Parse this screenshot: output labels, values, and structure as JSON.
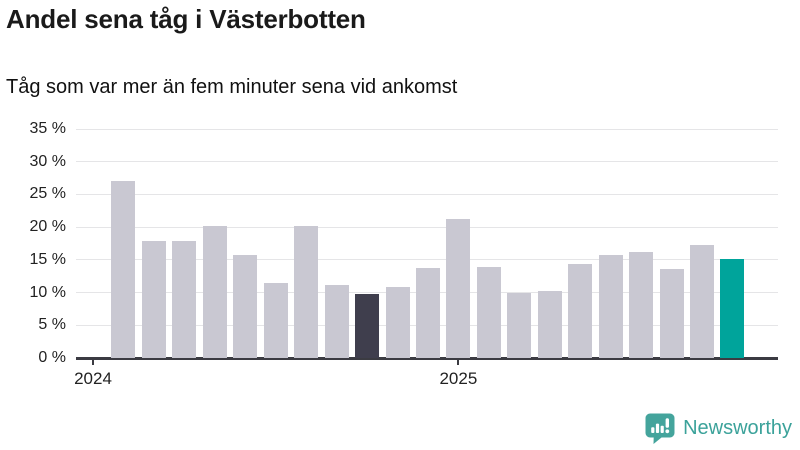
{
  "header": {
    "title": "Andel sena tåg i Västerbotten",
    "subtitle": "Tåg som var mer än fem minuter sena vid ankomst"
  },
  "chart_data": {
    "type": "bar",
    "title": "Andel sena tåg i Västerbotten",
    "subtitle": "Tåg som var mer än fem minuter sena vid ankomst",
    "unit": "%",
    "x": [
      "2024-01",
      "2024-02",
      "2024-03",
      "2024-04",
      "2024-05",
      "2024-06",
      "2024-07",
      "2024-08",
      "2024-09",
      "2024-10",
      "2024-11",
      "2024-12",
      "2025-01",
      "2025-02",
      "2025-03",
      "2025-04",
      "2025-05",
      "2025-06",
      "2025-07",
      "2025-08",
      "2025-09",
      "2025-10"
    ],
    "values": [
      null,
      27,
      17.9,
      17.9,
      20.2,
      15.8,
      11.5,
      20.2,
      11.2,
      9.8,
      10.9,
      13.8,
      21.2,
      13.9,
      10,
      10.2,
      14.3,
      15.7,
      16.2,
      13.6,
      17.2,
      15.2
    ],
    "highlight": {
      "dark_index": 9,
      "teal_index": 21
    },
    "ylim": [
      0,
      35
    ],
    "ytick_step": 5,
    "ytick_labels": [
      "0 %",
      "5 %",
      "10 %",
      "15 %",
      "20 %",
      "25 %",
      "30 %",
      "35 %"
    ],
    "xticks": [
      {
        "label": "2024",
        "slot": 0
      },
      {
        "label": "2025",
        "slot": 12
      }
    ],
    "grid": true,
    "legend": "none",
    "colors": {
      "bar_default": "#c9c8d2",
      "bar_dark": "#3f3e4d",
      "bar_teal": "#00a49b",
      "grid": "#e5e5e7",
      "axis": "#3b3b42"
    }
  },
  "footer": {
    "brand": "Newsworthy",
    "brand_color": "#3ba29a",
    "logo_color": "#44a49c"
  }
}
